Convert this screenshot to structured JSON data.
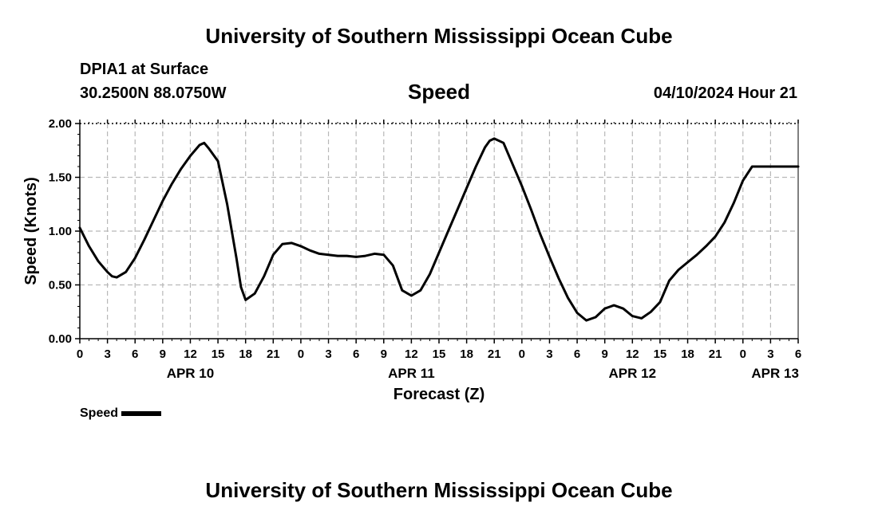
{
  "header": {
    "title": "University of Southern Mississippi Ocean Cube",
    "station": "DPIA1 at Surface",
    "coordinates": "30.2500N  88.0750W",
    "variable": "Speed",
    "datetime": "04/10/2024 Hour 21"
  },
  "footer": {
    "title": "University of Southern Mississippi Ocean Cube"
  },
  "legend": {
    "label": "Speed"
  },
  "chart_data": {
    "type": "line",
    "title": "Speed",
    "xlabel": "Forecast (Z)",
    "ylabel": "Speed (Knots)",
    "ylim": [
      0,
      2.0
    ],
    "xlim_hours": [
      0,
      78
    ],
    "y_ticks": [
      "0.00",
      "0.50",
      "1.00",
      "1.50",
      "2.00"
    ],
    "y_tick_values": [
      0,
      0.5,
      1.0,
      1.5,
      2.0
    ],
    "x_tick_labels": [
      "0",
      "3",
      "6",
      "9",
      "12",
      "15",
      "18",
      "21",
      "0",
      "3",
      "6",
      "9",
      "12",
      "15",
      "18",
      "21",
      "0",
      "3",
      "6",
      "9",
      "12",
      "15",
      "18",
      "21",
      "0",
      "3",
      "6"
    ],
    "day_labels": [
      {
        "label": "APR 10",
        "hour": 12
      },
      {
        "label": "APR 11",
        "hour": 36
      },
      {
        "label": "APR 12",
        "hour": 60
      },
      {
        "label": "APR 13",
        "hour": 75.5
      }
    ],
    "grid": true,
    "series": [
      {
        "name": "Speed",
        "color": "#000000",
        "x": [
          0,
          1,
          2,
          3,
          3.5,
          4,
          5,
          6,
          7,
          8,
          9,
          10,
          11,
          12,
          13,
          13.5,
          14,
          15,
          16,
          17,
          17.5,
          18,
          19,
          20,
          21,
          22,
          23,
          24,
          25,
          26,
          27,
          28,
          29,
          30,
          31,
          32,
          33,
          34,
          35,
          36,
          37,
          38,
          39,
          40,
          41,
          42,
          43,
          44,
          44.5,
          45,
          46,
          47,
          48,
          49,
          50,
          51,
          52,
          53,
          54,
          55,
          56,
          57,
          58,
          59,
          60,
          61,
          62,
          63,
          63.5,
          64,
          65,
          66,
          67,
          68,
          69,
          70,
          71,
          72,
          73,
          74,
          75,
          76,
          77,
          78
        ],
        "values": [
          1.03,
          0.86,
          0.72,
          0.62,
          0.58,
          0.57,
          0.62,
          0.75,
          0.92,
          1.1,
          1.28,
          1.44,
          1.58,
          1.7,
          1.8,
          1.82,
          1.77,
          1.65,
          1.25,
          0.75,
          0.48,
          0.36,
          0.42,
          0.58,
          0.78,
          0.88,
          0.89,
          0.86,
          0.82,
          0.79,
          0.78,
          0.77,
          0.77,
          0.76,
          0.77,
          0.79,
          0.78,
          0.68,
          0.45,
          0.4,
          0.45,
          0.6,
          0.8,
          1.0,
          1.2,
          1.4,
          1.6,
          1.78,
          1.84,
          1.86,
          1.82,
          1.62,
          1.42,
          1.2,
          0.97,
          0.76,
          0.56,
          0.38,
          0.24,
          0.17,
          0.2,
          0.28,
          0.31,
          0.28,
          0.21,
          0.19,
          0.25,
          0.34,
          0.44,
          0.54,
          0.64,
          0.71,
          0.78,
          0.86,
          0.95,
          1.08,
          1.26,
          1.47,
          1.6,
          1.6,
          1.6,
          1.6,
          1.6,
          1.6
        ]
      }
    ]
  }
}
